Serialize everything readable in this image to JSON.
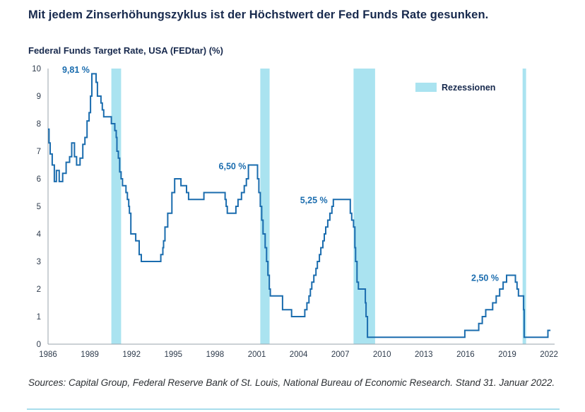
{
  "page": {
    "title": "Mit jedem Zinserhöhungszyklus ist der Höchstwert der Fed Funds Rate gesunken.",
    "source_note": "Sources: Capital Group, Federal Reserve Bank of St. Louis, National Bureau of Economic Research. Stand 31. Januar 2022."
  },
  "chart_data": {
    "type": "line",
    "title": "Federal Funds Target Rate, USA (FEDtar) (%)",
    "line_style": "step-after",
    "xlim": [
      1986,
      2022.4
    ],
    "ylim": [
      0,
      10
    ],
    "x_ticks": [
      1986,
      1989,
      1992,
      1995,
      1998,
      2001,
      2004,
      2007,
      2010,
      2013,
      2016,
      2019,
      2022
    ],
    "y_ticks": [
      0,
      1,
      2,
      3,
      4,
      5,
      6,
      7,
      8,
      9,
      10
    ],
    "grid": false,
    "colors": {
      "line": "#1a6cae",
      "recession_band": "#aae3f0",
      "axis": "#9aa3ab"
    },
    "legend": {
      "label": "Rezessionen",
      "position": "top-right"
    },
    "recession_bands": [
      [
        1990.55,
        1991.25
      ],
      [
        2001.25,
        2001.92
      ],
      [
        2007.95,
        2009.5
      ],
      [
        2020.1,
        2020.35
      ]
    ],
    "annotations": [
      {
        "label": "9,81 %",
        "x": 1988.0,
        "y": 9.85
      },
      {
        "label": "6,50 %",
        "x": 1999.25,
        "y": 6.35
      },
      {
        "label": "5,25 %",
        "x": 2005.1,
        "y": 5.12
      },
      {
        "label": "2,50 %",
        "x": 2017.4,
        "y": 2.3
      }
    ],
    "series": [
      {
        "name": "Federal Funds Target Rate",
        "points": [
          [
            1986.0,
            7.8
          ],
          [
            1986.07,
            7.3
          ],
          [
            1986.15,
            6.9
          ],
          [
            1986.3,
            6.5
          ],
          [
            1986.45,
            5.9
          ],
          [
            1986.6,
            6.3
          ],
          [
            1986.8,
            5.9
          ],
          [
            1987.05,
            6.2
          ],
          [
            1987.3,
            6.6
          ],
          [
            1987.55,
            6.8
          ],
          [
            1987.7,
            7.3
          ],
          [
            1987.9,
            6.8
          ],
          [
            1988.05,
            6.5
          ],
          [
            1988.3,
            6.75
          ],
          [
            1988.5,
            7.25
          ],
          [
            1988.65,
            7.5
          ],
          [
            1988.8,
            8.1
          ],
          [
            1988.95,
            8.4
          ],
          [
            1989.05,
            9.0
          ],
          [
            1989.15,
            9.81
          ],
          [
            1989.45,
            9.5
          ],
          [
            1989.55,
            9.0
          ],
          [
            1989.8,
            8.75
          ],
          [
            1989.9,
            8.5
          ],
          [
            1990.0,
            8.25
          ],
          [
            1990.55,
            8.0
          ],
          [
            1990.8,
            7.75
          ],
          [
            1990.9,
            7.5
          ],
          [
            1990.95,
            7.0
          ],
          [
            1991.05,
            6.75
          ],
          [
            1991.15,
            6.25
          ],
          [
            1991.25,
            6.0
          ],
          [
            1991.35,
            5.75
          ],
          [
            1991.6,
            5.5
          ],
          [
            1991.7,
            5.25
          ],
          [
            1991.8,
            5.0
          ],
          [
            1991.85,
            4.75
          ],
          [
            1991.95,
            4.0
          ],
          [
            1992.3,
            3.75
          ],
          [
            1992.55,
            3.25
          ],
          [
            1992.7,
            3.0
          ],
          [
            1994.1,
            3.25
          ],
          [
            1994.25,
            3.5
          ],
          [
            1994.3,
            3.75
          ],
          [
            1994.4,
            4.25
          ],
          [
            1994.6,
            4.75
          ],
          [
            1994.9,
            5.5
          ],
          [
            1995.1,
            6.0
          ],
          [
            1995.55,
            5.75
          ],
          [
            1995.95,
            5.5
          ],
          [
            1996.1,
            5.25
          ],
          [
            1997.2,
            5.5
          ],
          [
            1998.72,
            5.25
          ],
          [
            1998.8,
            5.0
          ],
          [
            1998.88,
            4.75
          ],
          [
            1999.5,
            5.0
          ],
          [
            1999.65,
            5.25
          ],
          [
            1999.9,
            5.5
          ],
          [
            2000.1,
            5.75
          ],
          [
            2000.25,
            6.0
          ],
          [
            2000.4,
            6.5
          ],
          [
            2001.05,
            6.0
          ],
          [
            2001.15,
            5.5
          ],
          [
            2001.25,
            5.0
          ],
          [
            2001.35,
            4.5
          ],
          [
            2001.45,
            4.0
          ],
          [
            2001.6,
            3.5
          ],
          [
            2001.7,
            3.0
          ],
          [
            2001.8,
            2.5
          ],
          [
            2001.9,
            2.0
          ],
          [
            2001.97,
            1.75
          ],
          [
            2002.85,
            1.25
          ],
          [
            2003.5,
            1.0
          ],
          [
            2004.45,
            1.25
          ],
          [
            2004.6,
            1.5
          ],
          [
            2004.75,
            1.75
          ],
          [
            2004.85,
            2.0
          ],
          [
            2004.95,
            2.25
          ],
          [
            2005.1,
            2.5
          ],
          [
            2005.25,
            2.75
          ],
          [
            2005.35,
            3.0
          ],
          [
            2005.5,
            3.25
          ],
          [
            2005.6,
            3.5
          ],
          [
            2005.75,
            3.75
          ],
          [
            2005.85,
            4.0
          ],
          [
            2005.95,
            4.25
          ],
          [
            2006.1,
            4.5
          ],
          [
            2006.25,
            4.75
          ],
          [
            2006.4,
            5.0
          ],
          [
            2006.5,
            5.25
          ],
          [
            2007.72,
            4.75
          ],
          [
            2007.82,
            4.5
          ],
          [
            2007.95,
            4.25
          ],
          [
            2008.05,
            3.5
          ],
          [
            2008.1,
            3.0
          ],
          [
            2008.2,
            2.25
          ],
          [
            2008.3,
            2.0
          ],
          [
            2008.8,
            1.5
          ],
          [
            2008.85,
            1.0
          ],
          [
            2008.95,
            0.25
          ],
          [
            2015.95,
            0.5
          ],
          [
            2016.95,
            0.75
          ],
          [
            2017.2,
            1.0
          ],
          [
            2017.45,
            1.25
          ],
          [
            2017.95,
            1.5
          ],
          [
            2018.2,
            1.75
          ],
          [
            2018.45,
            2.0
          ],
          [
            2018.7,
            2.25
          ],
          [
            2018.95,
            2.5
          ],
          [
            2019.58,
            2.25
          ],
          [
            2019.7,
            2.0
          ],
          [
            2019.8,
            1.75
          ],
          [
            2020.17,
            1.25
          ],
          [
            2020.21,
            0.25
          ],
          [
            2021.92,
            0.5
          ],
          [
            2022.1,
            0.5
          ]
        ]
      }
    ]
  }
}
